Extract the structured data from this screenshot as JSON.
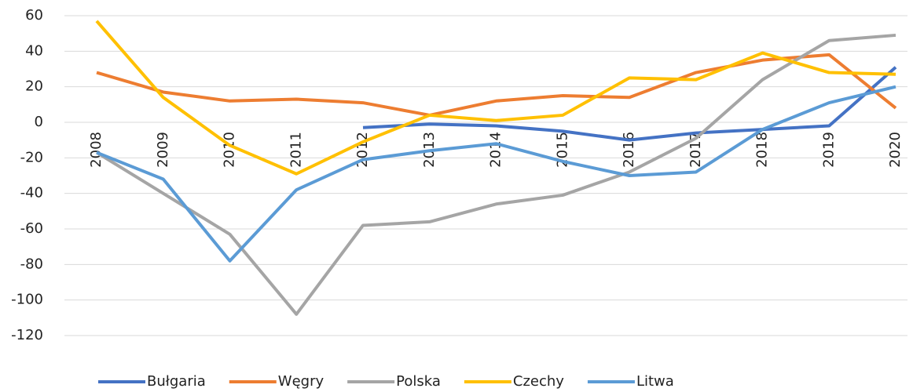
{
  "chart_data": {
    "type": "line",
    "categories": [
      "2008",
      "2009",
      "2010",
      "2011",
      "2012",
      "2013",
      "2014",
      "2015",
      "2016",
      "2017",
      "2018",
      "2019",
      "2020"
    ],
    "series": [
      {
        "name": "Bułgaria",
        "color": "#4472c4",
        "values": [
          null,
          null,
          null,
          null,
          -3,
          -1,
          -2,
          -5,
          -10,
          -6,
          -4,
          -2,
          31
        ]
      },
      {
        "name": "Węgry",
        "color": "#ed7d31",
        "values": [
          28,
          17,
          12,
          13,
          11,
          4,
          12,
          15,
          14,
          28,
          35,
          38,
          8
        ]
      },
      {
        "name": "Polska",
        "color": "#a5a5a5",
        "values": [
          -17,
          -40,
          -63,
          -108,
          -58,
          -56,
          -46,
          -41,
          -28,
          -9,
          24,
          46,
          49
        ]
      },
      {
        "name": "Czechy",
        "color": "#ffc000",
        "values": [
          57,
          14,
          -13,
          -29,
          -11,
          4,
          1,
          4,
          25,
          24,
          39,
          28,
          27
        ]
      },
      {
        "name": "Litwa",
        "color": "#5b9bd5",
        "values": [
          -17,
          -32,
          -78,
          -38,
          -21,
          -16,
          -12,
          -22,
          -30,
          -28,
          -4,
          11,
          20
        ]
      }
    ],
    "ylim": [
      -120,
      60
    ],
    "yticks": [
      -120,
      -100,
      -80,
      -60,
      -40,
      -20,
      0,
      20,
      40,
      60
    ],
    "grid": true,
    "legend": "bottom"
  }
}
